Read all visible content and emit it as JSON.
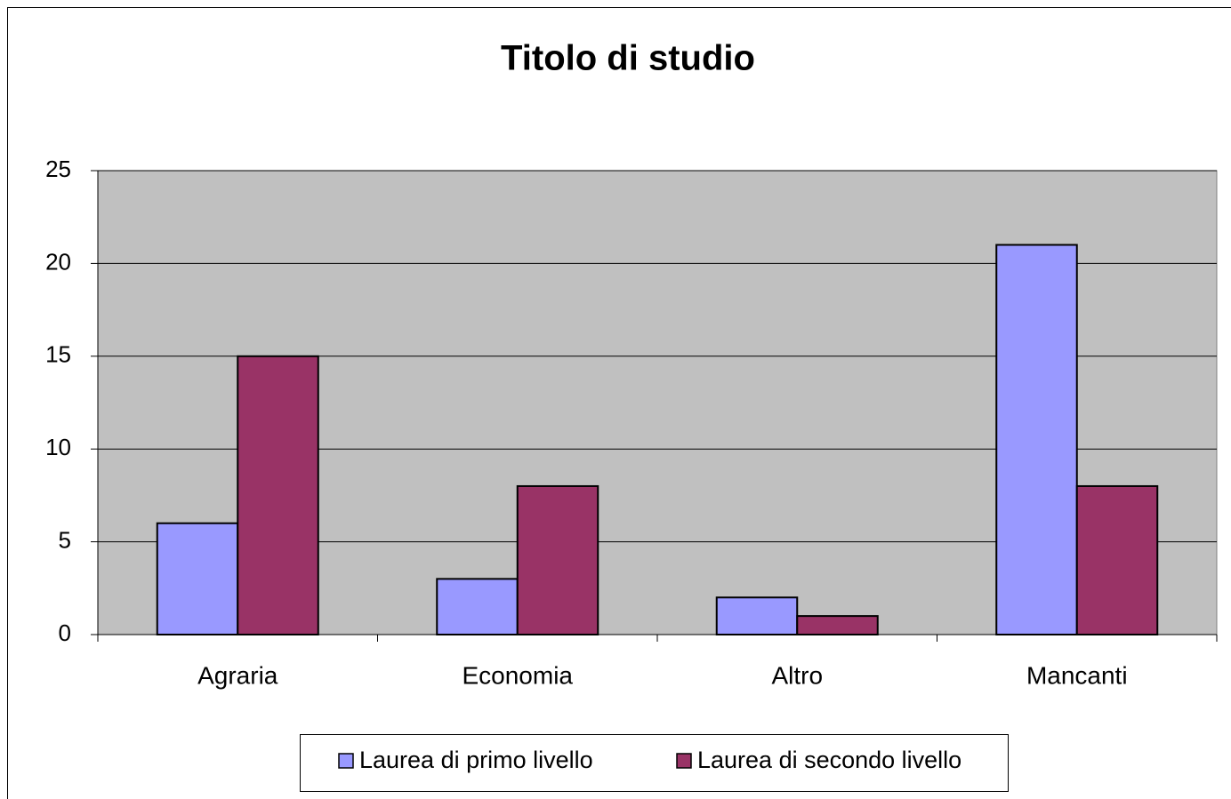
{
  "chart_data": {
    "type": "bar",
    "title": "Titolo di studio",
    "categories": [
      "Agraria",
      "Economia",
      "Altro",
      "Mancanti"
    ],
    "series": [
      {
        "name": "Laurea di primo livello",
        "color": "#9999ff",
        "values": [
          6,
          3,
          2,
          21
        ]
      },
      {
        "name": "Laurea di secondo livello",
        "color": "#993366",
        "values": [
          15,
          8,
          1,
          8
        ]
      }
    ],
    "ylim": [
      0,
      25
    ],
    "yticks": [
      0,
      5,
      10,
      15,
      20,
      25
    ],
    "grid": true,
    "legend": "bottom"
  }
}
